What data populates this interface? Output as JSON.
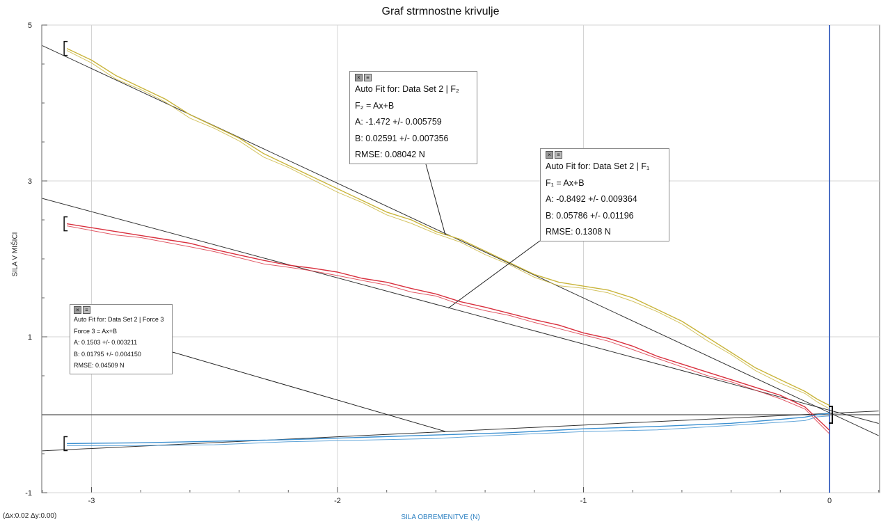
{
  "chart_data": {
    "type": "line",
    "title": "Graf strmnostne krivulje",
    "xlabel": "SILA OBREMENITVE (N)",
    "ylabel": "SILA V MIŠICI",
    "xlim": [
      -3.2,
      0.2
    ],
    "ylim": [
      -1,
      5
    ],
    "x_ticks": [
      -3,
      -2,
      -1,
      0
    ],
    "y_ticks": [
      -1,
      1,
      3,
      5
    ],
    "grid": true,
    "series": [
      {
        "name": "F₂",
        "color": "#c9b43a",
        "x": [
          -3.1,
          -3.0,
          -2.9,
          -2.8,
          -2.7,
          -2.6,
          -2.5,
          -2.4,
          -2.3,
          -2.2,
          -2.1,
          -2.0,
          -1.9,
          -1.8,
          -1.7,
          -1.6,
          -1.5,
          -1.4,
          -1.3,
          -1.2,
          -1.1,
          -1.0,
          -0.9,
          -0.8,
          -0.7,
          -0.6,
          -0.5,
          -0.4,
          -0.3,
          -0.2,
          -0.1,
          -0.05,
          0.0
        ],
        "y": [
          4.7,
          4.55,
          4.35,
          4.2,
          4.05,
          3.85,
          3.7,
          3.55,
          3.35,
          3.2,
          3.05,
          2.9,
          2.75,
          2.6,
          2.5,
          2.35,
          2.25,
          2.1,
          1.95,
          1.8,
          1.7,
          1.65,
          1.6,
          1.5,
          1.35,
          1.2,
          1.0,
          0.8,
          0.6,
          0.45,
          0.3,
          0.2,
          0.12
        ]
      },
      {
        "name": "F₁",
        "color": "#d9303e",
        "x": [
          -3.1,
          -3.0,
          -2.9,
          -2.8,
          -2.7,
          -2.6,
          -2.5,
          -2.4,
          -2.3,
          -2.2,
          -2.1,
          -2.0,
          -1.9,
          -1.8,
          -1.7,
          -1.6,
          -1.5,
          -1.4,
          -1.3,
          -1.2,
          -1.1,
          -1.0,
          -0.9,
          -0.8,
          -0.7,
          -0.6,
          -0.5,
          -0.4,
          -0.3,
          -0.2,
          -0.1,
          -0.05,
          0.0
        ],
        "y": [
          2.45,
          2.4,
          2.35,
          2.3,
          2.25,
          2.2,
          2.12,
          2.05,
          1.98,
          1.92,
          1.88,
          1.83,
          1.75,
          1.7,
          1.62,
          1.55,
          1.45,
          1.38,
          1.3,
          1.22,
          1.15,
          1.05,
          0.98,
          0.88,
          0.75,
          0.65,
          0.55,
          0.45,
          0.35,
          0.25,
          0.1,
          -0.05,
          -0.2
        ]
      },
      {
        "name": "Force 3",
        "color": "#3a8fd0",
        "x": [
          -3.1,
          -2.8,
          -2.5,
          -2.2,
          -1.9,
          -1.6,
          -1.3,
          -1.0,
          -0.7,
          -0.4,
          -0.2,
          -0.1,
          -0.05,
          0.0
        ],
        "y": [
          -0.37,
          -0.36,
          -0.34,
          -0.32,
          -0.29,
          -0.26,
          -0.23,
          -0.18,
          -0.15,
          -0.11,
          -0.06,
          -0.03,
          0.0,
          0.02
        ]
      }
    ],
    "fits": [
      {
        "series": "F₂",
        "slope": -1.472,
        "intercept": 0.02591
      },
      {
        "series": "F₁",
        "slope": -0.8492,
        "intercept": 0.05786
      },
      {
        "series": "Force 3",
        "slope": 0.1503,
        "intercept": 0.01795
      }
    ],
    "annotations": [
      {
        "id": "fit_f2",
        "lines": [
          "Auto Fit for: Data Set 2 | F₂",
          "F₂ = Ax+B",
          "A: -1.472 +/- 0.005759",
          "B: 0.02591 +/- 0.007356",
          "RMSE: 0.08042 N"
        ]
      },
      {
        "id": "fit_f1",
        "lines": [
          "Auto Fit for: Data Set 2 | F₁",
          "F₁ = Ax+B",
          "A: -0.8492 +/- 0.009364",
          "B: 0.05786 +/- 0.01196",
          "RMSE: 0.1308 N"
        ]
      },
      {
        "id": "fit_f3",
        "lines": [
          "Auto Fit for: Data Set 2 | Force 3",
          "Force 3 = Ax+B",
          "A: 0.1503 +/- 0.003211",
          "B: 0.01795 +/- 0.004150",
          "RMSE: 0.04509 N"
        ]
      }
    ],
    "readout": "(Δx:0.02 Δy:0.00)"
  }
}
